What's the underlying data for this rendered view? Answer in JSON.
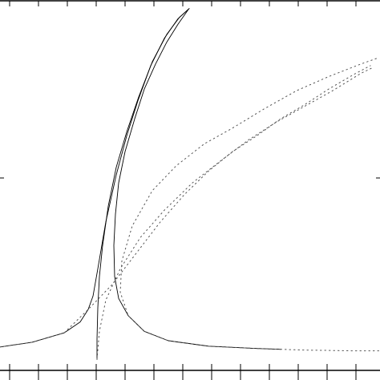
{
  "chart_data": {
    "type": "line",
    "title": "",
    "xlabel": "",
    "ylabel": "",
    "grid": false,
    "legend": "none",
    "xlim": [
      0,
      474
    ],
    "ylim": [
      0,
      474
    ],
    "x_ticks": [
      12,
      48,
      84,
      120,
      156,
      192,
      228,
      264,
      300,
      336,
      372,
      408,
      444
    ],
    "series": [
      {
        "style": "solid",
        "color": "#000000",
        "points": [
          [
            0,
            30
          ],
          [
            40,
            36
          ],
          [
            80,
            48
          ],
          [
            100,
            62
          ],
          [
            110,
            78
          ],
          [
            116,
            95
          ],
          [
            122,
            130
          ],
          [
            132,
            190
          ],
          [
            145,
            250
          ],
          [
            158,
            300
          ],
          [
            172,
            345
          ],
          [
            188,
            390
          ],
          [
            205,
            425
          ],
          [
            222,
            450
          ],
          [
            236,
            463
          ]
        ]
      },
      {
        "style": "solid",
        "color": "#000000",
        "points": [
          [
            235,
            462
          ],
          [
            222,
            443
          ],
          [
            208,
            420
          ],
          [
            194,
            392
          ],
          [
            180,
            360
          ],
          [
            168,
            322
          ],
          [
            156,
            280
          ],
          [
            148,
            240
          ],
          [
            144,
            200
          ],
          [
            142,
            160
          ],
          [
            143,
            120
          ],
          [
            148,
            92
          ],
          [
            160,
            70
          ],
          [
            180,
            50
          ],
          [
            210,
            38
          ],
          [
            260,
            31
          ],
          [
            320,
            28
          ],
          [
            350,
            27
          ]
        ]
      },
      {
        "style": "solid",
        "color": "#000000",
        "points": [
          [
            121,
            14
          ],
          [
            121,
            40
          ],
          [
            122,
            80
          ],
          [
            124,
            120
          ],
          [
            128,
            160
          ],
          [
            135,
            210
          ],
          [
            145,
            260
          ],
          [
            158,
            305
          ],
          [
            173,
            350
          ],
          [
            190,
            395
          ],
          [
            208,
            430
          ],
          [
            224,
            452
          ],
          [
            236,
            463
          ]
        ]
      },
      {
        "style": "dotted",
        "color": "#555555",
        "points": [
          [
            0,
            30
          ],
          [
            40,
            36
          ],
          [
            80,
            48
          ],
          [
            110,
            78
          ],
          [
            140,
            110
          ],
          [
            170,
            150
          ],
          [
            200,
            190
          ],
          [
            230,
            225
          ],
          [
            260,
            255
          ],
          [
            290,
            280
          ],
          [
            320,
            300
          ],
          [
            350,
            322
          ],
          [
            380,
            340
          ],
          [
            410,
            360
          ],
          [
            440,
            378
          ],
          [
            462,
            390
          ]
        ]
      },
      {
        "style": "dotted",
        "color": "#555555",
        "points": [
          [
            350,
            27
          ],
          [
            320,
            28
          ],
          [
            260,
            31
          ],
          [
            210,
            38
          ],
          [
            180,
            50
          ],
          [
            160,
            70
          ],
          [
            150,
            100
          ],
          [
            152,
            140
          ],
          [
            165,
            185
          ],
          [
            190,
            230
          ],
          [
            220,
            262
          ],
          [
            255,
            290
          ],
          [
            290,
            310
          ],
          [
            330,
            335
          ],
          [
            370,
            358
          ],
          [
            410,
            376
          ],
          [
            450,
            392
          ],
          [
            472,
            400
          ]
        ]
      },
      {
        "style": "dotted",
        "color": "#555555",
        "points": [
          [
            121,
            14
          ],
          [
            124,
            50
          ],
          [
            132,
            90
          ],
          [
            150,
            130
          ],
          [
            175,
            170
          ],
          [
            205,
            205
          ],
          [
            240,
            240
          ],
          [
            275,
            268
          ],
          [
            310,
            295
          ],
          [
            345,
            318
          ],
          [
            380,
            338
          ],
          [
            415,
            358
          ],
          [
            450,
            380
          ],
          [
            466,
            388
          ]
        ]
      },
      {
        "style": "dotted",
        "color": "#555555",
        "points": [
          [
            350,
            27
          ],
          [
            380,
            26
          ],
          [
            410,
            25.5
          ],
          [
            440,
            25
          ],
          [
            474,
            25
          ]
        ]
      }
    ]
  }
}
